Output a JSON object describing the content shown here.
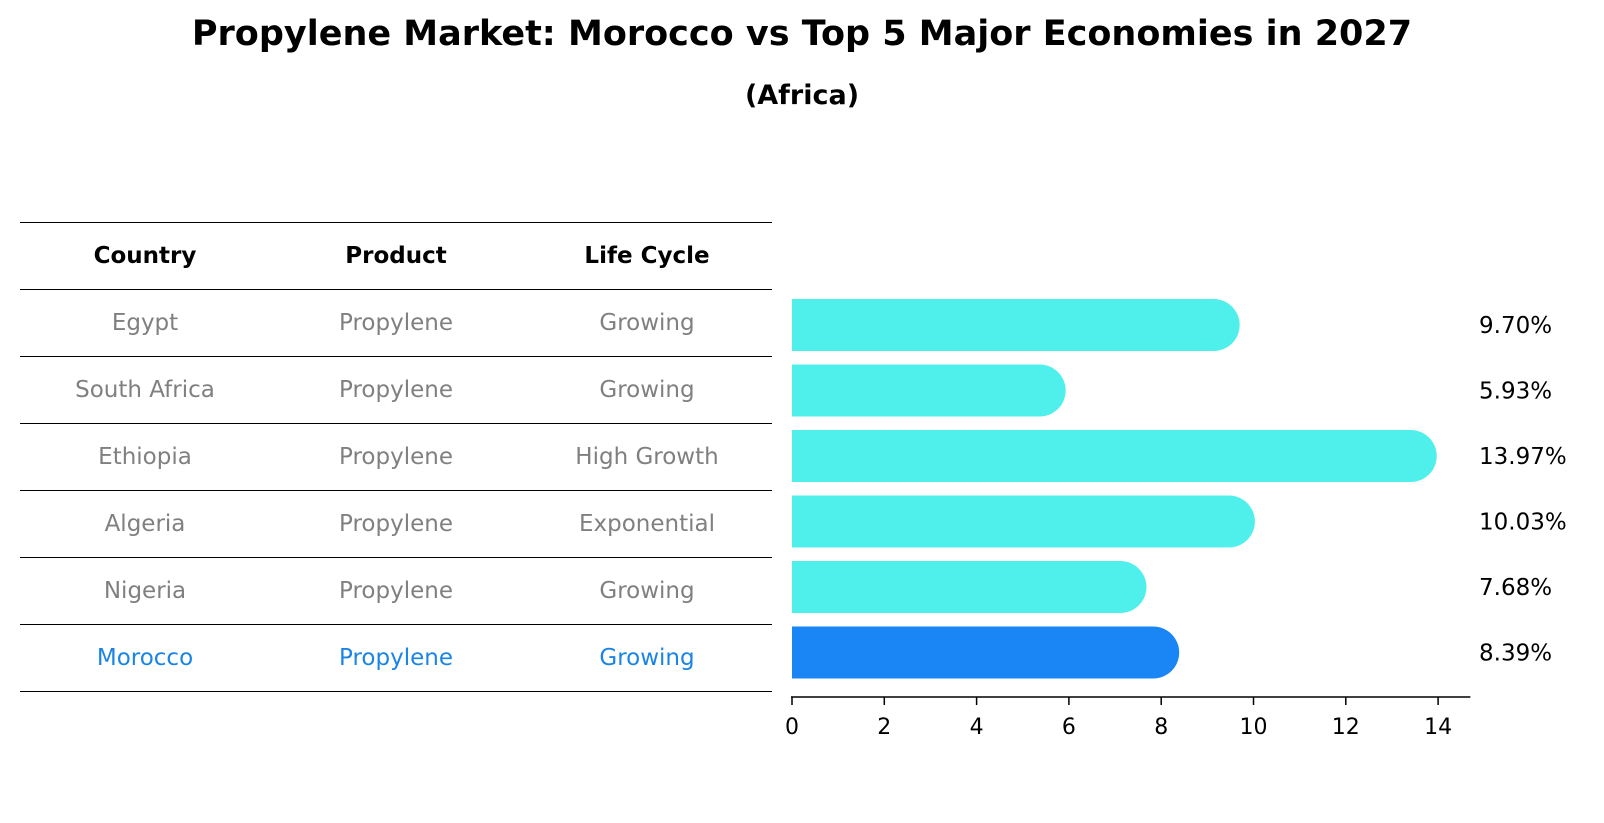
{
  "title": "Propylene Market: Morocco vs Top 5 Major Economies in 2027",
  "subtitle": "(Africa)",
  "table": {
    "headers": [
      "Country",
      "Product",
      "Life Cycle"
    ],
    "rows": [
      {
        "country": "Egypt",
        "product": "Propylene",
        "life_cycle": "Growing",
        "highlight": false
      },
      {
        "country": "South Africa",
        "product": "Propylene",
        "life_cycle": "Growing",
        "highlight": false
      },
      {
        "country": "Ethiopia",
        "product": "Propylene",
        "life_cycle": "High Growth",
        "highlight": false
      },
      {
        "country": "Algeria",
        "product": "Propylene",
        "life_cycle": "Exponential",
        "highlight": false
      },
      {
        "country": "Nigeria",
        "product": "Propylene",
        "life_cycle": "Growing",
        "highlight": false
      },
      {
        "country": "Morocco",
        "product": "Propylene",
        "life_cycle": "Growing",
        "highlight": true
      }
    ]
  },
  "colors": {
    "bar": "#4ff0ec",
    "highlight_bar": "#1a85f5",
    "text_muted": "#808080",
    "text_highlight": "#1a85e6"
  },
  "chart_data": {
    "type": "bar",
    "orientation": "horizontal",
    "categories": [
      "Egypt",
      "South Africa",
      "Ethiopia",
      "Algeria",
      "Nigeria",
      "Morocco"
    ],
    "values": [
      9.7,
      5.93,
      13.97,
      10.03,
      7.68,
      8.39
    ],
    "value_labels": [
      "9.70%",
      "5.93%",
      "13.97%",
      "10.03%",
      "7.68%",
      "8.39%"
    ],
    "highlight_category": "Morocco",
    "xlim": [
      0,
      14.7
    ],
    "xticks": [
      0,
      2,
      4,
      6,
      8,
      10,
      12,
      14
    ],
    "grid": false
  }
}
